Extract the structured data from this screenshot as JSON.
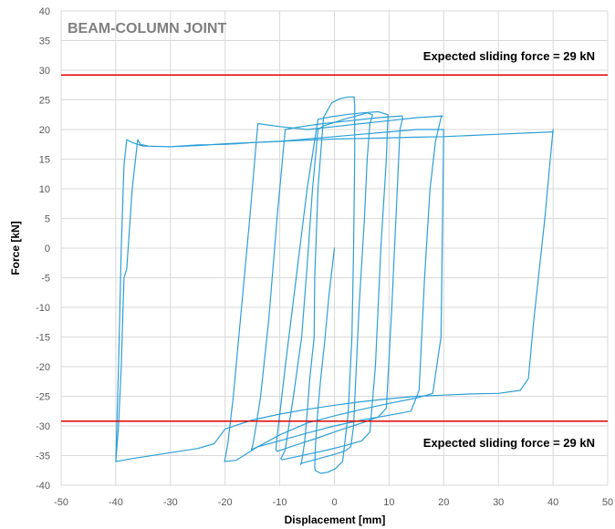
{
  "chart_data": {
    "type": "line",
    "title": "BEAM-COLUMN JOINT",
    "xlabel": "Displacement [mm]",
    "ylabel": "Force [kN]",
    "xlim": [
      -50,
      50
    ],
    "ylim": [
      -40,
      40
    ],
    "xticks": [
      "-50",
      "-40",
      "-30",
      "-20",
      "-10",
      "0",
      "10",
      "20",
      "30",
      "40",
      "50"
    ],
    "yticks": [
      "40",
      "35",
      "30",
      "25",
      "20",
      "15",
      "10",
      "5",
      "0",
      "-5",
      "-10",
      "-15",
      "-20",
      "-25",
      "-30",
      "-35",
      "-40"
    ],
    "grid": true,
    "legend": "none",
    "colors": {
      "hysteresis": "#2e9fd6",
      "reference": "#e00000"
    },
    "reference_lines": [
      {
        "y": 29.2,
        "label": "Expected sliding force = 29 kN"
      },
      {
        "y": -29.2,
        "label": "Expected sliding force = 29 kN"
      }
    ],
    "series": [
      {
        "x": [
          0,
          -1,
          -1.8,
          -2.5,
          -3,
          -3.3,
          -3.5,
          -3.6,
          -3.5,
          -2.5,
          -1.2,
          0.2,
          1.5,
          2.5,
          3.2,
          3.5,
          3.7,
          3.7,
          3.6,
          2.5,
          1,
          -0.5,
          -2,
          -3,
          -3.6,
          -3.7
        ],
        "y": [
          0,
          -8,
          -16,
          -22,
          -27,
          -31,
          -34,
          -37,
          -37.5,
          -38,
          -37.8,
          -37.2,
          -36,
          -28,
          -15,
          0,
          15,
          24,
          25.5,
          25.5,
          25.2,
          24.5,
          22,
          10,
          -5,
          -15
        ]
      },
      {
        "x": [
          -3.7,
          -4.5,
          -5,
          -5.5,
          -6,
          -6.2,
          -6,
          -4,
          -2,
          0,
          2,
          3,
          3.5,
          4.5,
          5.5,
          6,
          6.5,
          7,
          6,
          4,
          2,
          0,
          -2,
          -3
        ],
        "y": [
          -15,
          -22,
          -28,
          -33,
          -36,
          -36.5,
          -36.3,
          -35.8,
          -35.3,
          -34.8,
          -34.2,
          -33.5,
          -30,
          -10,
          5,
          15,
          21,
          22.5,
          22.8,
          22.3,
          21.8,
          21.2,
          20.6,
          20
        ]
      },
      {
        "x": [
          -3,
          -4,
          -5,
          -6,
          -7.5,
          -8.5,
          -9,
          -9.5,
          -9.8,
          -9.6,
          -7,
          -4,
          -1,
          2,
          5,
          6.5,
          7.5,
          8.5,
          9.5,
          9.8,
          8,
          5,
          2,
          -1,
          -3
        ],
        "y": [
          20,
          10,
          -3,
          -15,
          -25,
          -31,
          -34,
          -35,
          -35.5,
          -35.7,
          -35.2,
          -34.6,
          -34,
          -33.3,
          -32.5,
          -31,
          -20,
          0,
          15,
          22.5,
          23,
          22.8,
          22.5,
          22.1,
          21.7
        ]
      },
      {
        "x": [
          -3,
          -5,
          -7,
          -9,
          -10,
          -10.5,
          -10.7,
          -10.5,
          -7,
          -3,
          1,
          5,
          8,
          9.5,
          10.5,
          11.5,
          12,
          12.5,
          12.3,
          8,
          3,
          -2,
          -6,
          -9
        ],
        "y": [
          21.7,
          10,
          -5,
          -20,
          -28,
          -32,
          -34,
          -34.3,
          -33.2,
          -32,
          -30.7,
          -29.5,
          -28.5,
          -27,
          -10,
          10,
          20,
          22,
          22.3,
          22,
          21.5,
          21,
          20.5,
          20
        ]
      },
      {
        "x": [
          -9,
          -10.5,
          -12,
          -13.5,
          -14.5,
          -15,
          -15.2,
          -14,
          -10,
          -5,
          0,
          5,
          10,
          14,
          15.5,
          16.5,
          17.5,
          18.5,
          19.5,
          19.8,
          15,
          10,
          5,
          0,
          -5,
          -10,
          -14
        ],
        "y": [
          20,
          5,
          -12,
          -25,
          -31,
          -33.5,
          -34,
          -33.5,
          -32.5,
          -31.2,
          -30,
          -29,
          -28.2,
          -27.5,
          -24,
          -5,
          10,
          18,
          22,
          22.3,
          22,
          21.5,
          21,
          20.5,
          20,
          20.5,
          21
        ]
      },
      {
        "x": [
          -14,
          -15.5,
          -17,
          -18.5,
          -19.5,
          -20,
          -20.1,
          -18,
          -14,
          -10,
          -5,
          0,
          5,
          10,
          15,
          18,
          19.5,
          20,
          15,
          10,
          5,
          0,
          -5,
          -10,
          -15,
          -18
        ],
        "y": [
          21,
          5,
          -10,
          -25,
          -33,
          -35.5,
          -36,
          -35.8,
          -33.5,
          -31.5,
          -29.5,
          -28.3,
          -27.2,
          -26.2,
          -25.3,
          -24.5,
          -15,
          20,
          20,
          19.6,
          19.2,
          18.8,
          18.4,
          18,
          17.8,
          17.6
        ]
      },
      {
        "x": [
          -18,
          -20,
          -25,
          -30,
          -35,
          -37,
          -38,
          -38.5,
          -39,
          -39.5,
          -40,
          -37,
          -30,
          -25,
          -22,
          -20,
          -15,
          -10,
          -5,
          0,
          5,
          10,
          15,
          20,
          25,
          30,
          34,
          35.5,
          36.5,
          37.5,
          38.5,
          39.5,
          40,
          40,
          35,
          30,
          25,
          20,
          15,
          10,
          5,
          0,
          -5,
          -10,
          -15,
          -20,
          -25,
          -30,
          -34,
          -35.5,
          -36,
          -37,
          -38,
          -38.5,
          -39,
          -39.5,
          -40
        ],
        "y": [
          17.6,
          17.5,
          17.4,
          17.1,
          17.2,
          17.8,
          18.3,
          14,
          0,
          -20,
          -36,
          -35.5,
          -34.5,
          -33.8,
          -33,
          -30.5,
          -29,
          -28,
          -27.2,
          -26.5,
          -25.9,
          -25.4,
          -25,
          -24.8,
          -24.6,
          -24.5,
          -24,
          -22,
          -12,
          -3.5,
          5,
          15,
          20,
          19.6,
          19.4,
          19.2,
          19,
          18.8,
          18.7,
          18.6,
          18.5,
          18.4,
          18.2,
          18,
          17.8,
          17.6,
          17.3,
          17.1,
          17.2,
          17.5,
          18.3,
          10,
          -3.5,
          -5,
          -20,
          -30,
          -36
        ]
      }
    ]
  }
}
